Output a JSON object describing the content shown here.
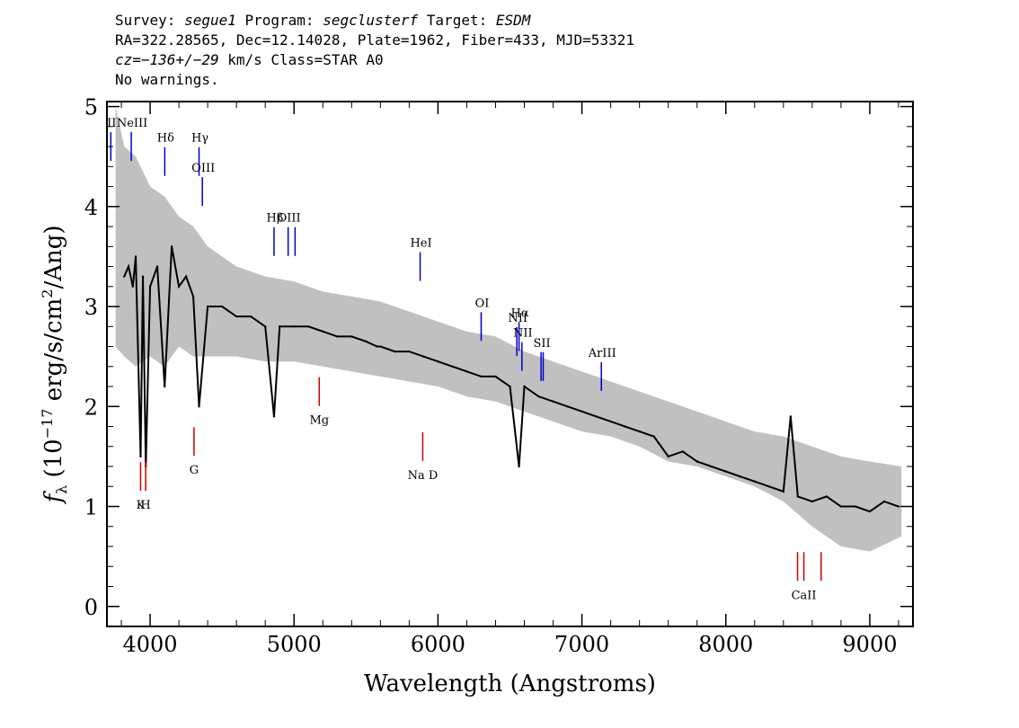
{
  "header": {
    "survey_label": "Survey: ",
    "survey": "segue1",
    "program_label": " Program: ",
    "program": "segclusterf",
    "target_label": " Target: ",
    "target": "ESDM",
    "line2": "RA=322.28565, Dec=12.14028, Plate=1962, Fiber=433, MJD=53321",
    "cz_label": "cz=",
    "cz_value": "−136+/−29",
    "cz_rest": " km/s Class=STAR A0",
    "line4": "No warnings."
  },
  "chart_data": {
    "type": "line",
    "xlabel": "Wavelength (Angstroms)",
    "ylabel_prefix": "f",
    "ylabel_sub": "λ",
    "ylabel_main": " (10",
    "ylabel_exp": "−17",
    "ylabel_rest": " erg/s/cm",
    "ylabel_exp2": "2",
    "ylabel_end": "/Ang)",
    "xlim": [
      3700,
      9300
    ],
    "ylim": [
      -0.2,
      5.05
    ],
    "xticks": [
      4000,
      5000,
      6000,
      7000,
      8000,
      9000
    ],
    "yticks": [
      0,
      1,
      2,
      3,
      4,
      5
    ],
    "flux_color": "#000000",
    "error_color": "#c0c0c0",
    "series": [
      {
        "role": "flux",
        "x": [
          3820,
          3850,
          3880,
          3900,
          3934,
          3950,
          3970,
          4000,
          4050,
          4101,
          4150,
          4200,
          4250,
          4300,
          4340,
          4400,
          4500,
          4600,
          4700,
          4800,
          4861,
          4900,
          5000,
          5100,
          5200,
          5300,
          5400,
          5500,
          5577,
          5600,
          5700,
          5800,
          5900,
          6000,
          6100,
          6200,
          6300,
          6400,
          6500,
          6563,
          6600,
          6700,
          6800,
          6900,
          7000,
          7100,
          7200,
          7300,
          7400,
          7500,
          7600,
          7700,
          7800,
          7900,
          8000,
          8100,
          8200,
          8300,
          8400,
          8450,
          8500,
          8600,
          8700,
          8800,
          8900,
          9000,
          9100,
          9200
        ],
        "y": [
          3.3,
          3.4,
          3.2,
          3.5,
          1.5,
          3.3,
          1.4,
          3.2,
          3.4,
          2.2,
          3.6,
          3.2,
          3.3,
          3.1,
          2.0,
          3.0,
          3.0,
          2.9,
          2.9,
          2.8,
          1.9,
          2.8,
          2.8,
          2.8,
          2.75,
          2.7,
          2.7,
          2.65,
          2.6,
          2.6,
          2.55,
          2.55,
          2.5,
          2.45,
          2.4,
          2.35,
          2.3,
          2.3,
          2.2,
          1.4,
          2.2,
          2.1,
          2.05,
          2.0,
          1.95,
          1.9,
          1.85,
          1.8,
          1.75,
          1.7,
          1.5,
          1.55,
          1.45,
          1.4,
          1.35,
          1.3,
          1.25,
          1.2,
          1.15,
          1.9,
          1.1,
          1.05,
          1.1,
          1.0,
          1.0,
          0.95,
          1.05,
          1.0
        ]
      },
      {
        "role": "error",
        "x": [
          3760,
          3820,
          3900,
          4000,
          4100,
          4200,
          4300,
          4400,
          4600,
          4800,
          5000,
          5200,
          5400,
          5600,
          5800,
          6000,
          6200,
          6400,
          6600,
          6800,
          7000,
          7200,
          7400,
          7600,
          7800,
          8000,
          8200,
          8400,
          8600,
          8800,
          9000,
          9220
        ],
        "y_low": [
          2.6,
          2.5,
          2.4,
          2.5,
          2.4,
          2.6,
          2.5,
          2.5,
          2.5,
          2.45,
          2.45,
          2.4,
          2.35,
          2.3,
          2.25,
          2.2,
          2.1,
          2.05,
          1.95,
          1.85,
          1.75,
          1.7,
          1.6,
          1.45,
          1.4,
          1.3,
          1.2,
          1.05,
          0.8,
          0.6,
          0.55,
          0.7
        ],
        "y_high": [
          5.0,
          4.6,
          4.5,
          4.2,
          4.1,
          3.9,
          3.8,
          3.6,
          3.4,
          3.3,
          3.25,
          3.15,
          3.1,
          3.05,
          2.95,
          2.85,
          2.75,
          2.7,
          2.55,
          2.45,
          2.35,
          2.25,
          2.15,
          2.05,
          1.95,
          1.85,
          1.75,
          1.7,
          1.6,
          1.5,
          1.45,
          1.4
        ]
      }
    ],
    "emission_lines": [
      {
        "label": "II",
        "x": 3727,
        "y": 4.6,
        "color": "#0000cc"
      },
      {
        "label": "NeIII",
        "x": 3869,
        "y": 4.6,
        "color": "#0000cc"
      },
      {
        "label": "Hδ",
        "x": 4102,
        "y": 4.45,
        "color": "#0000cc"
      },
      {
        "label": "Hγ",
        "x": 4340,
        "y": 4.45,
        "color": "#0000cc"
      },
      {
        "label": "OIII",
        "x": 4363,
        "y": 4.15,
        "color": "#0000cc"
      },
      {
        "label": "Hβ",
        "x": 4861,
        "y": 3.65,
        "color": "#0000cc"
      },
      {
        "label": "OIII",
        "x": 4959,
        "y": 3.65,
        "color": "#0000cc"
      },
      {
        "label": "",
        "x": 5007,
        "y": 3.65,
        "color": "#0000cc"
      },
      {
        "label": "HeI",
        "x": 5876,
        "y": 3.4,
        "color": "#0000cc"
      },
      {
        "label": "OI",
        "x": 6300,
        "y": 2.8,
        "color": "#0000cc"
      },
      {
        "label": "NII",
        "x": 6548,
        "y": 2.65,
        "color": "#0000cc"
      },
      {
        "label": "Hα",
        "x": 6563,
        "y": 2.7,
        "color": "#0000cc"
      },
      {
        "label": "NII",
        "x": 6583,
        "y": 2.5,
        "color": "#0000cc"
      },
      {
        "label": "SII",
        "x": 6716,
        "y": 2.4,
        "color": "#0000cc"
      },
      {
        "label": "",
        "x": 6731,
        "y": 2.4,
        "color": "#0000cc"
      },
      {
        "label": "ArIII",
        "x": 7135,
        "y": 2.3,
        "color": "#0000cc"
      }
    ],
    "absorption_lines": [
      {
        "label": "K",
        "x": 3934,
        "y": 1.3,
        "color": "#cc0000"
      },
      {
        "label": "H",
        "x": 3969,
        "y": 1.3,
        "color": "#cc0000"
      },
      {
        "label": "G",
        "x": 4305,
        "y": 1.65,
        "color": "#cc0000"
      },
      {
        "label": "Mg",
        "x": 5175,
        "y": 2.15,
        "color": "#cc0000"
      },
      {
        "label": "Na  D",
        "x": 5894,
        "y": 1.6,
        "color": "#cc0000"
      },
      {
        "label": "",
        "x": 8498,
        "y": 0.4,
        "color": "#cc0000"
      },
      {
        "label": "CaII",
        "x": 8542,
        "y": 0.4,
        "color": "#cc0000"
      },
      {
        "label": "",
        "x": 8662,
        "y": 0.4,
        "color": "#cc0000"
      }
    ]
  }
}
